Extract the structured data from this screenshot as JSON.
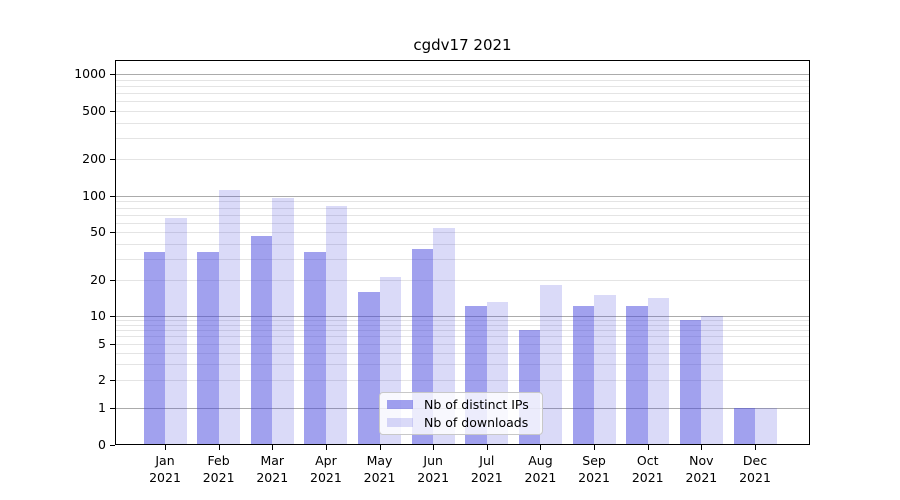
{
  "chart_data": {
    "type": "bar",
    "title": "cgdv17 2021",
    "yscale": "symlog",
    "grid": true,
    "legend_position": "lower center (inside plot)",
    "categories": [
      "Jan 2021",
      "Feb 2021",
      "Mar 2021",
      "Apr 2021",
      "May 2021",
      "Jun 2021",
      "Jul 2021",
      "Aug 2021",
      "Sep 2021",
      "Oct 2021",
      "Nov 2021",
      "Dec 2021"
    ],
    "series": [
      {
        "name": "Nb of distinct IPs",
        "color": "#4444dd",
        "alpha": 0.5,
        "fill": "rgba(68,68,221,0.5)",
        "values": [
          34,
          34,
          46,
          34,
          16,
          36,
          12,
          7,
          12,
          12,
          9,
          1
        ]
      },
      {
        "name": "Nb of downloads",
        "color": "#4444dd",
        "alpha": 0.2,
        "fill": "rgba(68,68,221,0.2)",
        "values": [
          65,
          112,
          96,
          83,
          21,
          54,
          13,
          18,
          15,
          14,
          10,
          1
        ]
      }
    ],
    "yticks": [
      0,
      1,
      2,
      5,
      10,
      20,
      50,
      100,
      200,
      500,
      1000
    ],
    "ytick_labels": [
      "0",
      "1",
      "2",
      "5",
      "10",
      "20",
      "50",
      "100",
      "200",
      "500",
      "1000"
    ],
    "ylim": [
      0,
      1200
    ],
    "xlabel": "",
    "ylabel": ""
  },
  "colors": {
    "bar_distinct_ips": "rgba(68,68,221,0.5)",
    "bar_downloads": "rgba(68,68,221,0.2)",
    "gridline_major": "#ababab",
    "gridline_minor": "#e4e4e4",
    "axis": "#000000",
    "legend_border": "#c8c8c8"
  }
}
